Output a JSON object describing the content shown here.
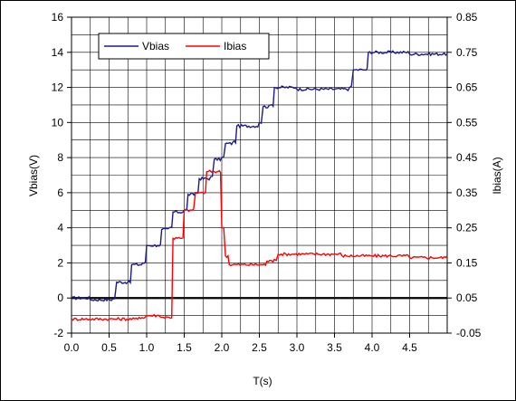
{
  "chart_data": {
    "type": "line",
    "title": "",
    "xlabel": "T(s)",
    "ylabel_left": "Vbias(V)",
    "ylabel_right": "Ibias(A)",
    "xlim": [
      0.0,
      5.0
    ],
    "ylim_left": [
      -2,
      16
    ],
    "ylim_right": [
      -0.05,
      0.85
    ],
    "x_ticks": [
      "0.0",
      "0.5",
      "1.0",
      "1.5",
      "2.0",
      "2.5",
      "3.0",
      "3.5",
      "4.0",
      "4.5"
    ],
    "y_left_ticks": [
      "-2",
      "0",
      "2",
      "4",
      "6",
      "8",
      "10",
      "12",
      "14",
      "16"
    ],
    "y_right_ticks": [
      "-0.05",
      "0.05",
      "0.15",
      "0.25",
      "0.35",
      "0.45",
      "0.55",
      "0.65",
      "0.75",
      "0.85"
    ],
    "grid": true,
    "legend_position": "top-left",
    "series": [
      {
        "name": "Vbias",
        "axis": "left",
        "color": "#1a1a8c",
        "points": [
          [
            0.0,
            0.0
          ],
          [
            0.25,
            -0.1
          ],
          [
            0.55,
            -0.05
          ],
          [
            0.6,
            0.9
          ],
          [
            0.75,
            0.9
          ],
          [
            0.8,
            1.9
          ],
          [
            0.95,
            2.0
          ],
          [
            1.0,
            3.0
          ],
          [
            1.15,
            3.0
          ],
          [
            1.2,
            3.9
          ],
          [
            1.3,
            4.0
          ],
          [
            1.35,
            4.9
          ],
          [
            1.5,
            5.0
          ],
          [
            1.55,
            5.9
          ],
          [
            1.65,
            6.0
          ],
          [
            1.7,
            6.8
          ],
          [
            1.85,
            6.9
          ],
          [
            1.9,
            7.9
          ],
          [
            2.0,
            8.0
          ],
          [
            2.05,
            8.8
          ],
          [
            2.15,
            8.9
          ],
          [
            2.2,
            9.8
          ],
          [
            2.5,
            10.0
          ],
          [
            2.55,
            10.9
          ],
          [
            2.65,
            11.0
          ],
          [
            2.7,
            12.0
          ],
          [
            3.0,
            11.9
          ],
          [
            3.7,
            12.0
          ],
          [
            3.75,
            13.0
          ],
          [
            3.9,
            13.0
          ],
          [
            3.95,
            14.0
          ],
          [
            4.5,
            13.9
          ],
          [
            5.0,
            13.9
          ]
        ]
      },
      {
        "name": "Ibias",
        "axis": "right",
        "color": "#ff0000",
        "points": [
          [
            0.0,
            -0.01
          ],
          [
            0.5,
            -0.01
          ],
          [
            0.9,
            -0.005
          ],
          [
            1.0,
            0.0
          ],
          [
            1.2,
            -0.005
          ],
          [
            1.3,
            -0.005
          ],
          [
            1.35,
            0.22
          ],
          [
            1.45,
            0.22
          ],
          [
            1.5,
            0.3
          ],
          [
            1.6,
            0.3
          ],
          [
            1.65,
            0.35
          ],
          [
            1.75,
            0.35
          ],
          [
            1.8,
            0.41
          ],
          [
            1.9,
            0.41
          ],
          [
            1.95,
            0.41
          ],
          [
            2.0,
            0.25
          ],
          [
            2.05,
            0.17
          ],
          [
            2.1,
            0.145
          ],
          [
            2.55,
            0.145
          ],
          [
            2.6,
            0.155
          ],
          [
            2.7,
            0.16
          ],
          [
            2.75,
            0.175
          ],
          [
            3.5,
            0.175
          ],
          [
            3.6,
            0.17
          ],
          [
            4.0,
            0.17
          ],
          [
            4.5,
            0.165
          ],
          [
            5.0,
            0.17
          ]
        ]
      }
    ]
  }
}
